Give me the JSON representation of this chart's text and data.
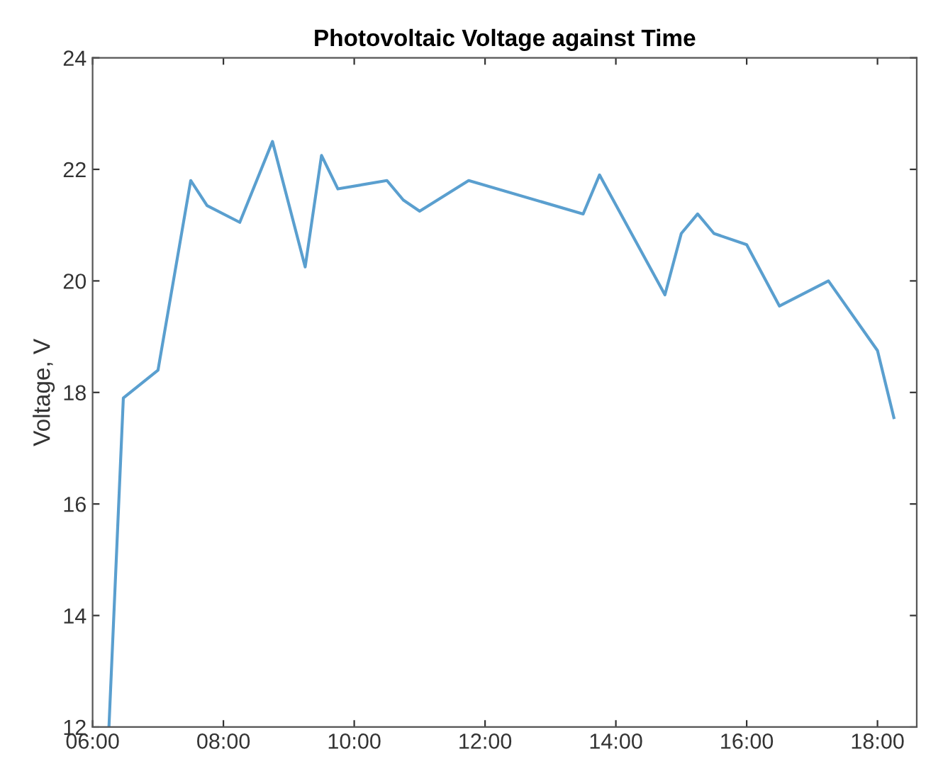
{
  "chart_data": {
    "type": "line",
    "title": "Photovoltaic Voltage against Time",
    "ylabel": "Voltage, V",
    "x": [
      6.25,
      6.47,
      7.0,
      7.5,
      7.75,
      8.25,
      8.75,
      9.25,
      9.5,
      9.75,
      10.5,
      10.75,
      11.0,
      11.75,
      13.5,
      13.75,
      14.75,
      15.0,
      15.25,
      15.5,
      16.0,
      16.5,
      17.25,
      18.0,
      18.25
    ],
    "series": [
      {
        "color": "#5a9fcf",
        "values": [
          12,
          17.9,
          18.4,
          21.8,
          21.35,
          21.05,
          22.5,
          20.25,
          22.25,
          21.65,
          21.8,
          21.45,
          21.25,
          21.8,
          21.2,
          21.9,
          19.75,
          20.85,
          21.2,
          20.85,
          20.65,
          19.55,
          20.0,
          18.75,
          17.55
        ]
      }
    ],
    "xlim": [
      6,
      18.6
    ],
    "ylim": [
      12,
      24
    ],
    "xticks": [
      {
        "value": 6,
        "label": "06:00"
      },
      {
        "value": 8,
        "label": "08:00"
      },
      {
        "value": 10,
        "label": "10:00"
      },
      {
        "value": 12,
        "label": "12:00"
      },
      {
        "value": 14,
        "label": "14:00"
      },
      {
        "value": 16,
        "label": "16:00"
      },
      {
        "value": 18,
        "label": "18:00"
      }
    ],
    "yticks": [
      12,
      14,
      16,
      18,
      20,
      22,
      24
    ],
    "grid": false,
    "marker": "none",
    "line_style": "solid",
    "legend": false
  }
}
